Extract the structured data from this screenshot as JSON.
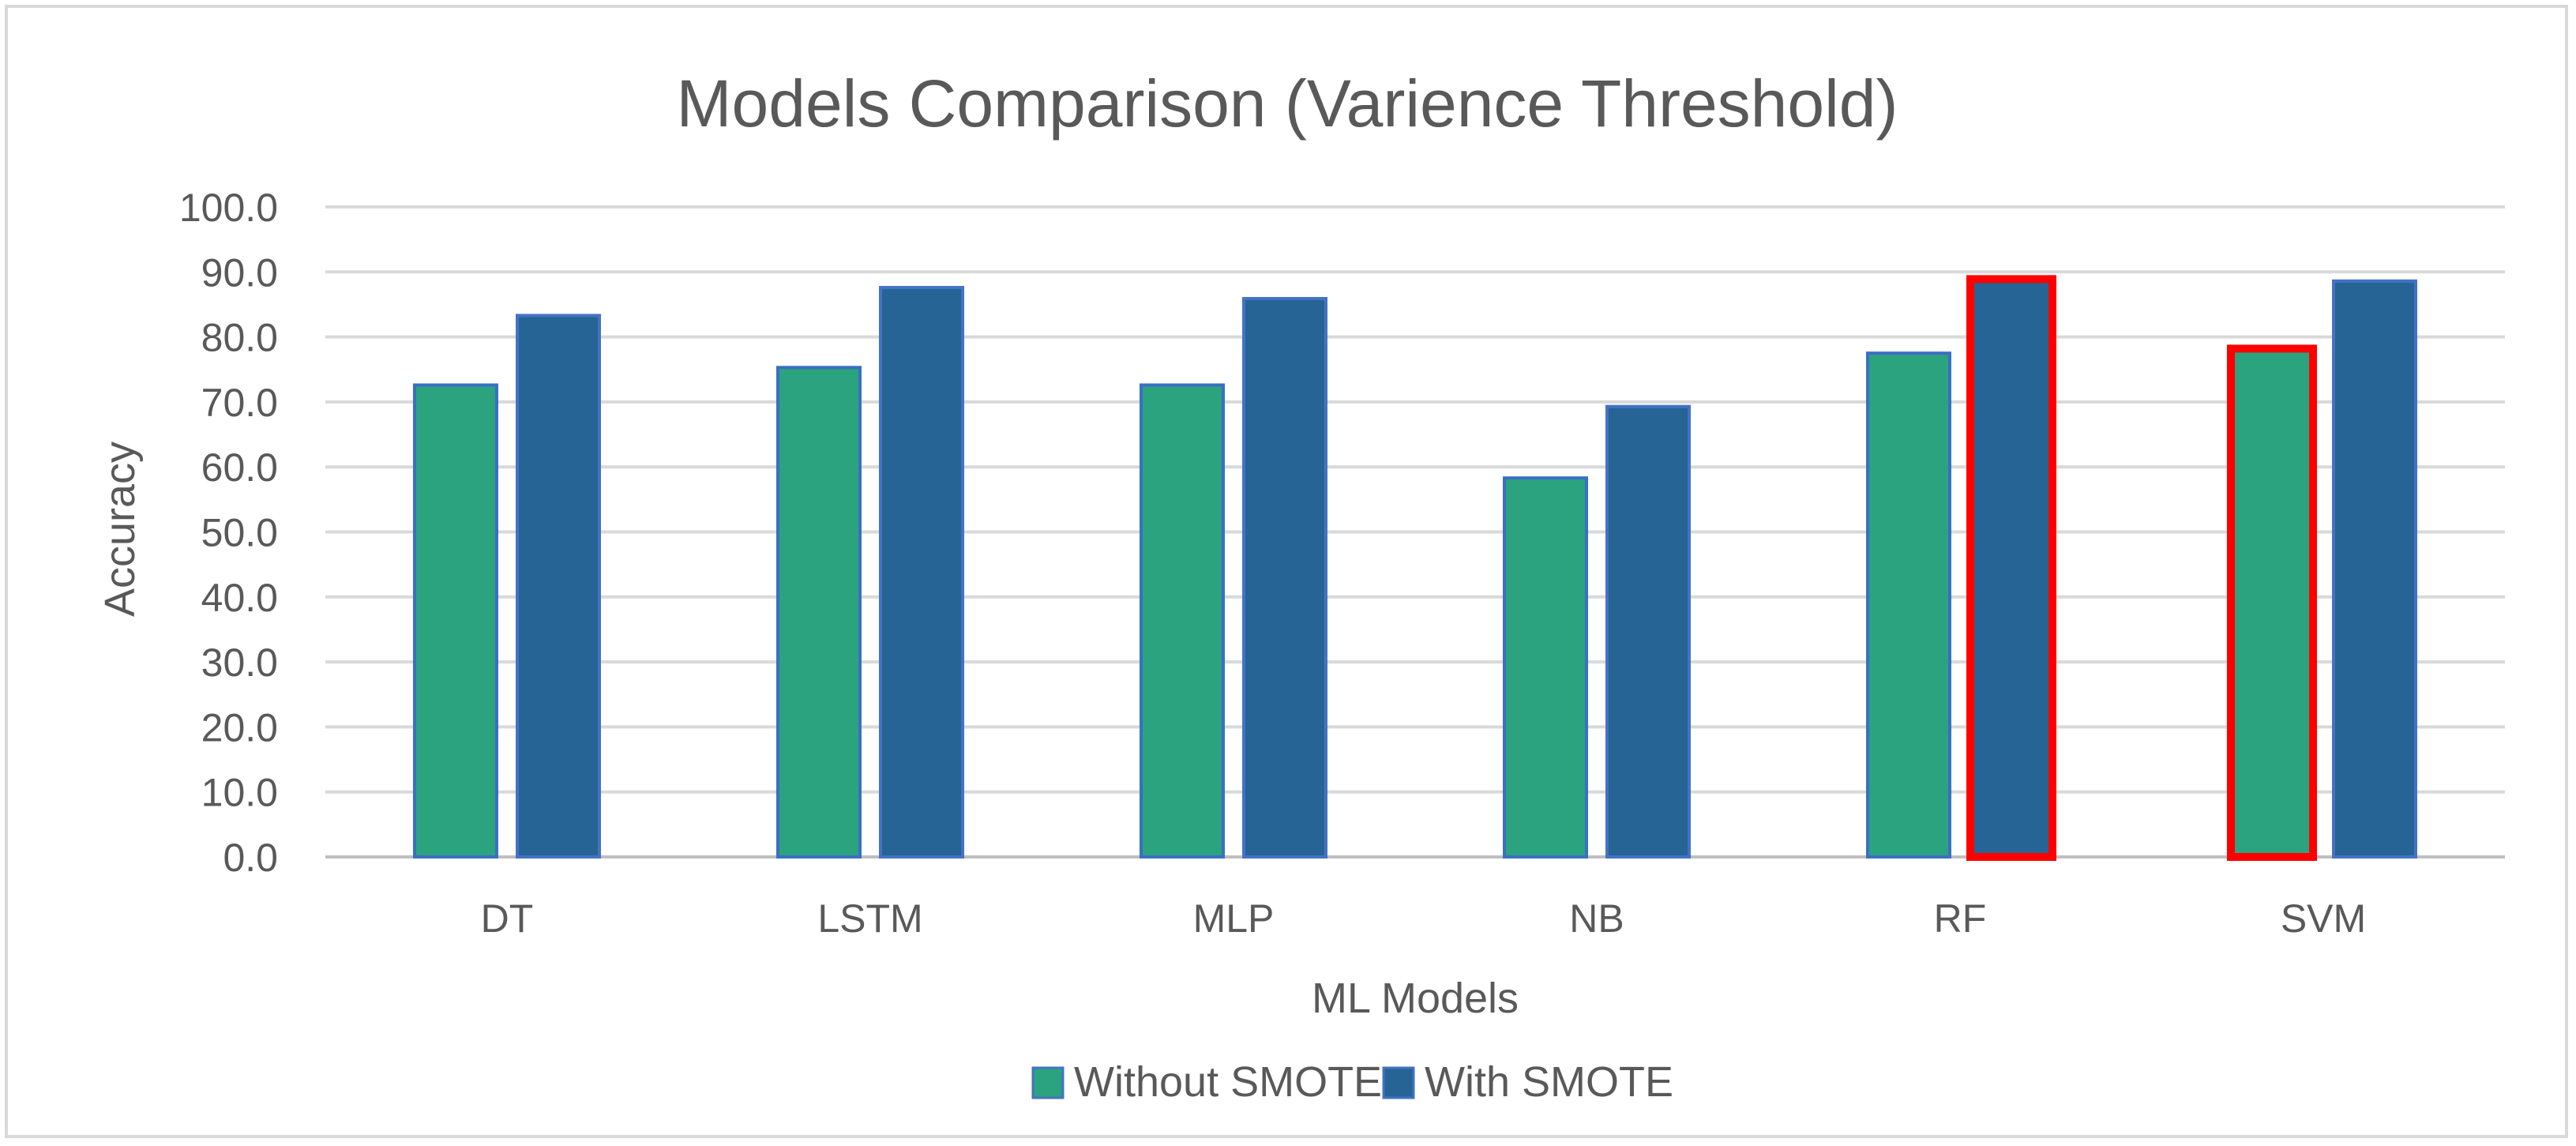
{
  "chart_data": {
    "type": "bar",
    "title": "Models Comparison (Varience Threshold)",
    "xlabel": "ML Models",
    "ylabel": "Accuracy",
    "categories": [
      "DT",
      "LSTM",
      "MLP",
      "NB",
      "RF",
      "SVM"
    ],
    "ylim": [
      0,
      100
    ],
    "yticks": [
      "0.0",
      "10.0",
      "20.0",
      "30.0",
      "40.0",
      "50.0",
      "60.0",
      "70.0",
      "80.0",
      "90.0",
      "100.0"
    ],
    "grid": true,
    "legend_position": "bottom",
    "series": [
      {
        "name": "Without SMOTE",
        "color": "#2ba37e",
        "values": [
          72.6,
          75.3,
          72.6,
          58.3,
          77.5,
          78.2
        ],
        "highlighted": [
          "SVM"
        ]
      },
      {
        "name": "With SMOTE",
        "color": "#256494",
        "values": [
          83.3,
          87.6,
          85.9,
          69.3,
          88.9,
          88.6
        ],
        "highlighted": [
          "RF"
        ]
      }
    ],
    "highlight_color": "#ff0000"
  }
}
